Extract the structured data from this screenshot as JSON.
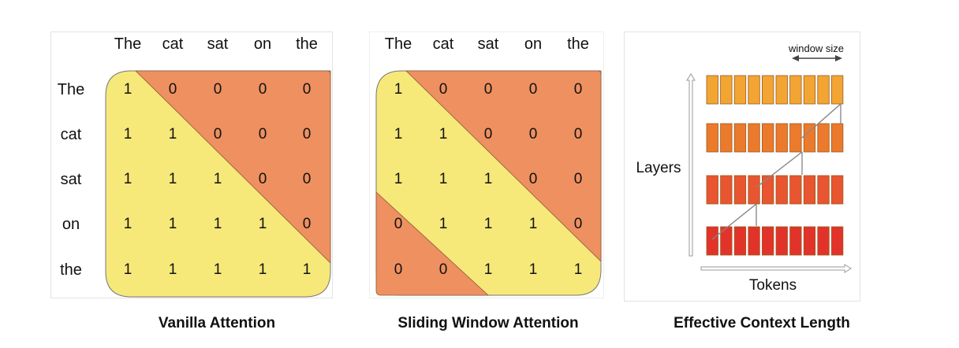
{
  "captions": {
    "vanilla": "Vanilla Attention",
    "sliding": "Sliding Window Attention",
    "effective": "Effective Context Length"
  },
  "tokens": [
    "The",
    "cat",
    "sat",
    "on",
    "the"
  ],
  "vanilla_matrix": [
    [
      1,
      0,
      0,
      0,
      0
    ],
    [
      1,
      1,
      0,
      0,
      0
    ],
    [
      1,
      1,
      1,
      0,
      0
    ],
    [
      1,
      1,
      1,
      1,
      0
    ],
    [
      1,
      1,
      1,
      1,
      1
    ]
  ],
  "sliding_matrix": [
    [
      1,
      0,
      0,
      0,
      0
    ],
    [
      1,
      1,
      0,
      0,
      0
    ],
    [
      1,
      1,
      1,
      0,
      0
    ],
    [
      0,
      1,
      1,
      1,
      0
    ],
    [
      0,
      0,
      1,
      1,
      1
    ]
  ],
  "effective": {
    "window_size_label": "window size",
    "layers_label": "Layers",
    "tokens_label": "Tokens",
    "num_layers": 4,
    "num_tokens": 10,
    "layer_colors": [
      "#f2a533",
      "#ec7a2c",
      "#e85530",
      "#e2332b"
    ]
  },
  "colors": {
    "attend": "#f7e87a",
    "mask": "#ee9060"
  }
}
